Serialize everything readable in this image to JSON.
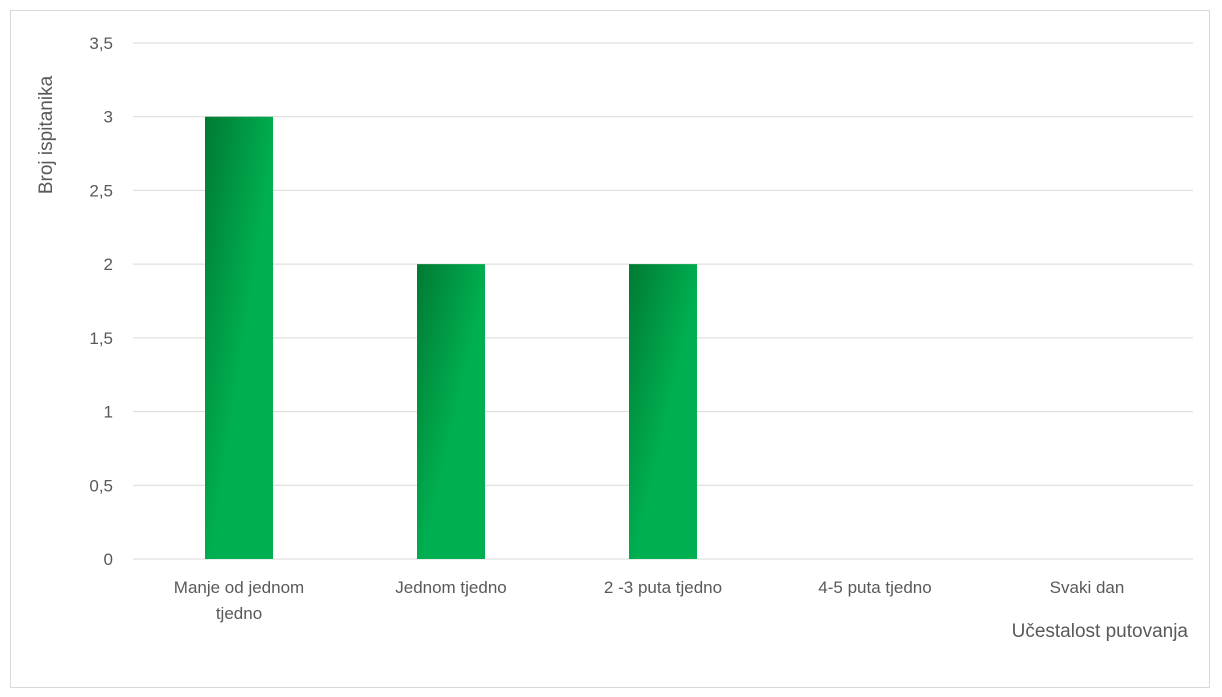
{
  "chart_data": {
    "type": "bar",
    "categories": [
      "Manje od jednom tjedno",
      "Jednom tjedno",
      "2 -3 puta tjedno",
      "4-5 puta tjedno",
      "Svaki dan"
    ],
    "category_label_lines": [
      [
        "Manje od jednom",
        "tjedno"
      ],
      [
        "Jednom tjedno"
      ],
      [
        "2 -3 puta tjedno"
      ],
      [
        "4-5 puta tjedno"
      ],
      [
        "Svaki dan"
      ]
    ],
    "values": [
      3,
      2,
      2,
      0,
      0
    ],
    "xlabel": "Učestalost putovanja",
    "ylabel": "Broj ispitanika",
    "ylim": [
      0,
      3.5
    ],
    "yticks": [
      0,
      0.5,
      1,
      1.5,
      2,
      2.5,
      3,
      3.5
    ],
    "ytick_labels": [
      "0",
      "0,5",
      "1",
      "1,5",
      "2",
      "2,5",
      "3",
      "3,5"
    ],
    "grid": true,
    "legend": "none",
    "colors": {
      "bar_dark": "#007a33",
      "bar_light": "#00b050",
      "gridline": "#d9d9d9",
      "text": "#595959",
      "border": "#d9d9d9"
    }
  }
}
